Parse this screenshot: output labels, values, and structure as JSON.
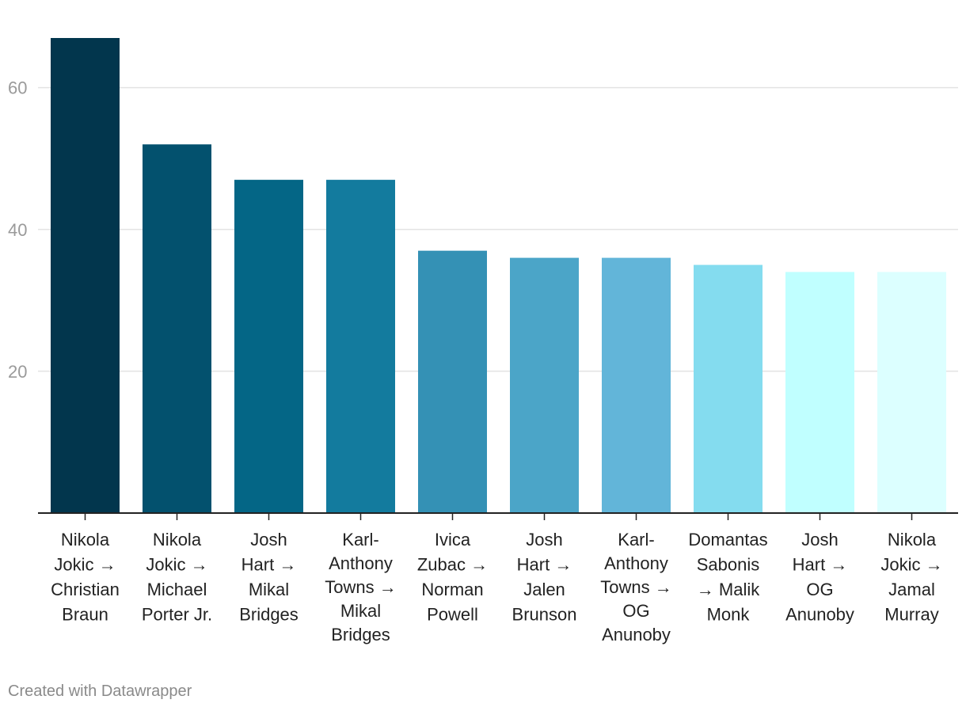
{
  "chart_data": {
    "type": "bar",
    "title": "",
    "xlabel": "",
    "ylabel": "",
    "ylim": [
      0,
      67
    ],
    "yticks": [
      20,
      40,
      60
    ],
    "grid": true,
    "categories": [
      [
        "Nikola",
        "Jokic →",
        "Christian",
        "Braun"
      ],
      [
        "Nikola",
        "Jokic →",
        "Michael",
        "Porter Jr."
      ],
      [
        "Josh",
        "Hart →",
        "Mikal",
        "Bridges"
      ],
      [
        "Karl-",
        "Anthony",
        "Towns →",
        "Mikal",
        "Bridges"
      ],
      [
        "Ivica",
        "Zubac →",
        "Norman",
        "Powell"
      ],
      [
        "Josh",
        "Hart →",
        "Jalen",
        "Brunson"
      ],
      [
        "Karl-",
        "Anthony",
        "Towns →",
        "OG",
        "Anunoby"
      ],
      [
        "Domantas",
        "Sabonis",
        "→ Malik",
        "Monk"
      ],
      [
        "Josh",
        "Hart →",
        "OG",
        "Anunoby"
      ],
      [
        "Nikola",
        "Jokic →",
        "Jamal",
        "Murray"
      ]
    ],
    "values": [
      67,
      52,
      47,
      47,
      37,
      36,
      36,
      35,
      34,
      34
    ],
    "colors": [
      "#02364d",
      "#03516e",
      "#046686",
      "#137b9e",
      "#3491b5",
      "#4ba5c8",
      "#62b5d9",
      "#84dcef",
      "#c0ffff",
      "#dcffff"
    ]
  },
  "footer": {
    "credit": "Created with Datawrapper"
  }
}
